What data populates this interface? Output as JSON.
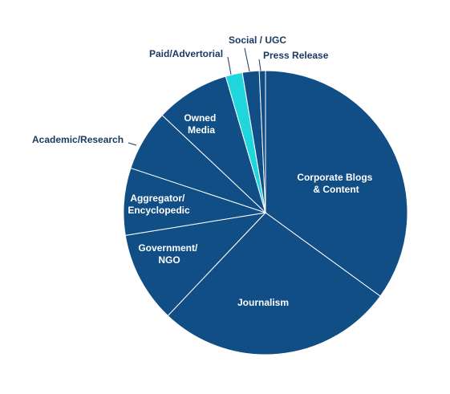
{
  "chart_data": {
    "type": "pie",
    "title": "",
    "categories": [
      "Corporate Blogs & Content",
      "Journalism",
      "Government/ NGO",
      "Aggregator/ Encyclopedic",
      "Academic/Research",
      "Owned Media",
      "Paid/Advertorial",
      "Social / UGC",
      "Press Release"
    ],
    "values": [
      34.8,
      26.9,
      10.3,
      7.6,
      6.9,
      8.4,
      1.9,
      1.9,
      0.7
    ],
    "value_unit": "percent",
    "colors": [
      "#104e85",
      "#104e85",
      "#104e85",
      "#104e85",
      "#104e85",
      "#104e85",
      "#1fd6dd",
      "#104e85",
      "#104e85"
    ],
    "slice_border_color": "#ffffff",
    "outer_label_color": "#1b3a63",
    "start_angle": "12 o'clock",
    "direction": "clockwise",
    "legend": "none",
    "labels": {
      "corporate": [
        "Corporate Blogs",
        "& Content"
      ],
      "journalism": [
        "Journalism"
      ],
      "government": [
        "Government/",
        "NGO"
      ],
      "aggregator": [
        "Aggregator/",
        "Encyclopedic"
      ],
      "academic": [
        "Academic/Research"
      ],
      "owned": [
        "Owned",
        "Media"
      ],
      "paid": [
        "Paid/Advertorial"
      ],
      "social": [
        "Social / UGC"
      ],
      "press": [
        "Press Release"
      ]
    }
  }
}
